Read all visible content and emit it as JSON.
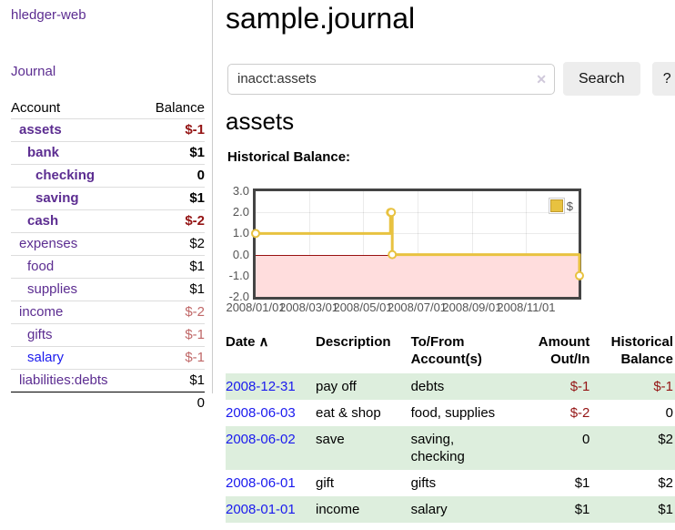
{
  "brand": {
    "label": "hledger-web"
  },
  "nav": {
    "journal": "Journal"
  },
  "sidebar": {
    "header": {
      "account": "Account",
      "balance": "Balance"
    },
    "accounts": [
      {
        "name": "assets",
        "balance": "$-1",
        "indent": 1,
        "bold": true,
        "negative": true
      },
      {
        "name": "bank",
        "balance": "$1",
        "indent": 2,
        "bold": true,
        "negative": false
      },
      {
        "name": "checking",
        "balance": "0",
        "indent": 3,
        "bold": true,
        "negative": false
      },
      {
        "name": "saving",
        "balance": "$1",
        "indent": 3,
        "bold": true,
        "negative": false
      },
      {
        "name": "cash",
        "balance": "$-2",
        "indent": 2,
        "bold": true,
        "negative": true
      },
      {
        "name": "expenses",
        "balance": "$2",
        "indent": 1,
        "bold": false,
        "negative": false
      },
      {
        "name": "food",
        "balance": "$1",
        "indent": 2,
        "bold": false,
        "negative": false
      },
      {
        "name": "supplies",
        "balance": "$1",
        "indent": 2,
        "bold": false,
        "negative": false
      },
      {
        "name": "income",
        "balance": "$-2",
        "indent": 1,
        "bold": false,
        "negative": true
      },
      {
        "name": "gifts",
        "balance": "$-1",
        "indent": 2,
        "bold": false,
        "negative": true
      },
      {
        "name": "salary",
        "balance": "$-1",
        "indent": 2,
        "bold": false,
        "negative": true,
        "blue": true
      },
      {
        "name": "liabilities:debts",
        "balance": "$1",
        "indent": 1,
        "bold": false,
        "negative": false
      }
    ],
    "total": "0"
  },
  "header": {
    "title": "sample.journal"
  },
  "search": {
    "value": "inacct:assets",
    "clear": "✕",
    "button": "Search",
    "help": "?"
  },
  "content": {
    "heading": "assets",
    "chart_title": "Historical Balance:"
  },
  "chart_data": {
    "type": "line",
    "steps": true,
    "series": [
      {
        "name": "$",
        "color": "#E8C240",
        "points": [
          [
            "2008-01-01",
            1
          ],
          [
            "2008-06-01",
            2
          ],
          [
            "2008-06-02",
            2
          ],
          [
            "2008-06-03",
            0
          ],
          [
            "2008-12-31",
            -1
          ]
        ]
      }
    ],
    "ylim": [
      -2.0,
      3.0
    ],
    "yticks": [
      "3.0",
      "2.0",
      "1.0",
      "0.0",
      "-1.0",
      "-2.0"
    ],
    "xticks": [
      "2008/01/01",
      "2008/03/01",
      "2008/05/01",
      "2008/07/01",
      "2008/09/01",
      "2008/11/01"
    ],
    "legend": "$",
    "legend_position": "top-right",
    "grid": true,
    "negative_region_color": "#ffdddd",
    "zero_line_color": "#991111",
    "line_color": "#E8C240"
  },
  "register": {
    "headers": {
      "date": "Date",
      "description": "Description",
      "accounts": "To/From Account(s)",
      "amount": "Amount Out/In",
      "balance": "Historical Balance"
    },
    "sort_icon": "∧",
    "rows": [
      {
        "date": "2008-12-31",
        "description": "pay off",
        "accounts": "debts",
        "amount": "$-1",
        "balance": "$-1"
      },
      {
        "date": "2008-06-03",
        "description": "eat & shop",
        "accounts": "food, supplies",
        "amount": "$-2",
        "balance": "0"
      },
      {
        "date": "2008-06-02",
        "description": "save",
        "accounts": "saving, checking",
        "amount": "0",
        "balance": "$2",
        "wrap": true
      },
      {
        "date": "2008-06-01",
        "description": "gift",
        "accounts": "gifts",
        "amount": "$1",
        "balance": "$2"
      },
      {
        "date": "2008-01-01",
        "description": "income",
        "accounts": "salary",
        "amount": "$1",
        "balance": "$1"
      }
    ]
  }
}
